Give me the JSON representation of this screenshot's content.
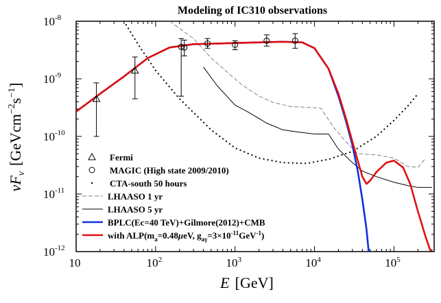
{
  "chart_data": {
    "type": "line",
    "title": "Modeling of IC310 observations",
    "xlabel": "E [GeV]",
    "ylabel": "νF_ν [GeV cm^-2 s^-1]",
    "xscale": "log",
    "yscale": "log",
    "xlim": [
      10,
      320000
    ],
    "ylim": [
      1e-12,
      1e-08
    ],
    "x_ticks": [
      {
        "value": 10,
        "base": "10",
        "exp": ""
      },
      {
        "value": 100,
        "base": "10",
        "exp": "2"
      },
      {
        "value": 1000,
        "base": "10",
        "exp": "3"
      },
      {
        "value": 10000,
        "base": "10",
        "exp": "4"
      },
      {
        "value": 100000,
        "base": "10",
        "exp": "5"
      }
    ],
    "y_ticks": [
      {
        "value": 1e-12,
        "base": "10",
        "exp": "-12"
      },
      {
        "value": 1e-11,
        "base": "10",
        "exp": "-11"
      },
      {
        "value": 1e-10,
        "base": "10",
        "exp": "-10"
      },
      {
        "value": 1e-09,
        "base": "10",
        "exp": "-9"
      },
      {
        "value": 1e-08,
        "base": "10",
        "exp": "-8"
      }
    ],
    "data_points": [
      {
        "name": "Fermi",
        "marker": "triangle",
        "points": [
          {
            "x": 18,
            "y": 4.5e-10,
            "ylo": 1e-10,
            "yhi": 8.5e-10
          },
          {
            "x": 55,
            "y": 1.4e-09,
            "ylo": 4.5e-10,
            "yhi": 2.4e-09
          }
        ]
      },
      {
        "name": "MAGIC (High state 2009/2010)",
        "marker": "circle",
        "points": [
          {
            "x": 210,
            "y": 3.6e-09,
            "ylo": 5e-10,
            "yhi": 5e-09
          },
          {
            "x": 230,
            "y": 3.5e-09,
            "ylo": 2.5e-09,
            "yhi": 4.7e-09
          },
          {
            "x": 450,
            "y": 4.1e-09,
            "ylo": 3.4e-09,
            "yhi": 5e-09
          },
          {
            "x": 1000,
            "y": 3.9e-09,
            "ylo": 3.2e-09,
            "yhi": 4.6e-09
          },
          {
            "x": 2500,
            "y": 4.6e-09,
            "ylo": 3.7e-09,
            "yhi": 5.8e-09
          },
          {
            "x": 5700,
            "y": 4.6e-09,
            "ylo": 3.4e-09,
            "yhi": 6.1e-09
          }
        ]
      }
    ],
    "series": [
      {
        "name": "CTA-south 50 hours",
        "style": "dotted",
        "color": "#000000",
        "x": [
          40,
          60,
          100,
          200,
          500,
          1000,
          2000,
          4000,
          8000,
          15000,
          30000,
          60000,
          100000,
          150000,
          200000
        ],
        "y": [
          1e-08,
          4e-09,
          1.4e-09,
          4.5e-10,
          1.3e-10,
          6.3e-11,
          4.2e-11,
          3.5e-11,
          3.4e-11,
          4e-11,
          5.5e-11,
          1e-10,
          1.9e-10,
          3.4e-10,
          5.5e-10
        ]
      },
      {
        "name": "LHAASO 1 yr",
        "style": "dashed",
        "color": "#808080",
        "x": [
          150,
          300,
          500,
          800,
          1200,
          2000,
          3000,
          5000,
          8000,
          12000,
          17000,
          25000,
          35000,
          60000,
          100000,
          150000,
          200000,
          250000
        ],
        "y": [
          1e-08,
          5e-09,
          2.3e-09,
          1.3e-09,
          8e-10,
          5e-10,
          3.9e-10,
          3.3e-10,
          3.2e-10,
          3.1e-10,
          1.5e-10,
          8e-11,
          5e-11,
          4.8e-11,
          4.2e-11,
          3e-11,
          2.9e-11,
          4.2e-11
        ]
      },
      {
        "name": "LHAASO 5 yr",
        "style": "solid",
        "color": "#000000",
        "x": [
          400,
          600,
          1000,
          1500,
          2500,
          4000,
          6000,
          10000,
          15000,
          20000,
          30000,
          40000,
          60000,
          100000,
          150000,
          200000,
          300000
        ],
        "y": [
          1.6e-09,
          7.5e-10,
          3.5e-10,
          2.6e-10,
          1.7e-10,
          1.3e-10,
          1.2e-10,
          1.1e-10,
          1.1e-10,
          6e-11,
          3.5e-11,
          2.5e-11,
          2e-11,
          1.6e-11,
          1.4e-11,
          1.3e-11,
          1.3e-11
        ]
      },
      {
        "name": "BPLC(Ec=40 TeV)+Gilmore(2012)+CMB",
        "style": "solid",
        "color": "#1030e0",
        "x": [
          10,
          20,
          40,
          80,
          150,
          300,
          600,
          1000,
          2000,
          4000,
          7000,
          10000,
          15000,
          20000,
          25000,
          30000,
          35000,
          40000,
          45000,
          48000
        ],
        "y": [
          2.7e-10,
          5.5e-10,
          1.1e-09,
          2.3e-09,
          3.5e-09,
          4e-09,
          4.1e-09,
          4.2e-09,
          4.3e-09,
          4.4e-09,
          4.3e-09,
          3.4e-09,
          1.5e-09,
          5e-10,
          1.8e-10,
          7e-11,
          2.5e-11,
          8e-12,
          2.5e-12,
          1e-12
        ]
      },
      {
        "name": "with ALP(m_a=0.48μeV, g_aγ=3×10^-11 GeV^-1)",
        "style": "solid",
        "color": "#e01010",
        "x": [
          10,
          20,
          40,
          80,
          150,
          300,
          600,
          1000,
          2000,
          4000,
          7000,
          10000,
          15000,
          20000,
          25000,
          30000,
          35000,
          40000,
          45000,
          50000,
          60000,
          80000,
          100000,
          130000,
          160000,
          200000,
          250000,
          290000
        ],
        "y": [
          2.7e-10,
          5.5e-10,
          1.1e-09,
          2.3e-09,
          3.5e-09,
          4e-09,
          4.1e-09,
          4.2e-09,
          4.3e-09,
          4.4e-09,
          4.3e-09,
          3.4e-09,
          1.5e-09,
          5.5e-10,
          2e-10,
          8e-11,
          3.8e-11,
          2e-11,
          1.5e-11,
          1.7e-11,
          2.4e-11,
          3.5e-11,
          3.8e-11,
          2.9e-11,
          1.5e-11,
          5e-12,
          1.8e-12,
          1e-12
        ]
      }
    ],
    "legend": {
      "position": "bottom-left",
      "entries": [
        {
          "label": "Fermi",
          "symbol": "triangle"
        },
        {
          "label": "MAGIC (High state 2009/2010)",
          "symbol": "circle"
        },
        {
          "label": "CTA-south 50 hours",
          "symbol": "dot"
        },
        {
          "label": "LHAASO 1 yr",
          "symbol": "dashed",
          "color": "#808080"
        },
        {
          "label": "LHAASO 5 yr",
          "symbol": "solid",
          "color": "#000000"
        },
        {
          "label": "BPLC(Ec=40 TeV)+Gilmore(2012)+CMB",
          "symbol": "solid-thick",
          "color": "#1030e0"
        },
        {
          "label": "with ALP(m_a=0.48μeV, g_aγ=3×10^-11 GeV^-1)",
          "symbol": "solid-thick",
          "color": "#e01010"
        }
      ]
    }
  }
}
